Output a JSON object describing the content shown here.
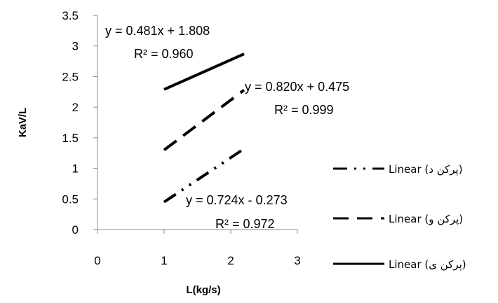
{
  "chart_data": {
    "type": "line",
    "title": "",
    "xlabel": "L(kg/s)",
    "ylabel": "KaV/L",
    "xlim": [
      0,
      3
    ],
    "ylim": [
      0,
      3.5
    ],
    "x_ticks": [
      "0",
      "1",
      "2",
      "3"
    ],
    "y_ticks": [
      "0",
      "0.5",
      "1",
      "1.5",
      "2",
      "2.5",
      "3",
      "3.5"
    ],
    "grid": false,
    "legend_position": "right",
    "series": [
      {
        "name": "Linear (پرکن د)",
        "style": "dash-dot-dot",
        "x": [
          1,
          2.2
        ],
        "y": [
          0.45,
          1.32
        ],
        "equation": "y = 0.724x - 0.273",
        "r2": "R² = 0.972"
      },
      {
        "name": "Linear (پرکن و)",
        "style": "dashed",
        "x": [
          1,
          2.2
        ],
        "y": [
          1.3,
          2.28
        ],
        "equation": "y = 0.820x + 0.475",
        "r2": "R² = 0.999"
      },
      {
        "name": "Linear (پرکن ی)",
        "style": "solid",
        "x": [
          1,
          2.2
        ],
        "y": [
          2.29,
          2.87
        ],
        "equation": "y = 0.481x + 1.808",
        "r2": "R² = 0.960"
      }
    ],
    "legend_order": [
      0,
      1,
      2
    ],
    "line_color": "#000000"
  }
}
